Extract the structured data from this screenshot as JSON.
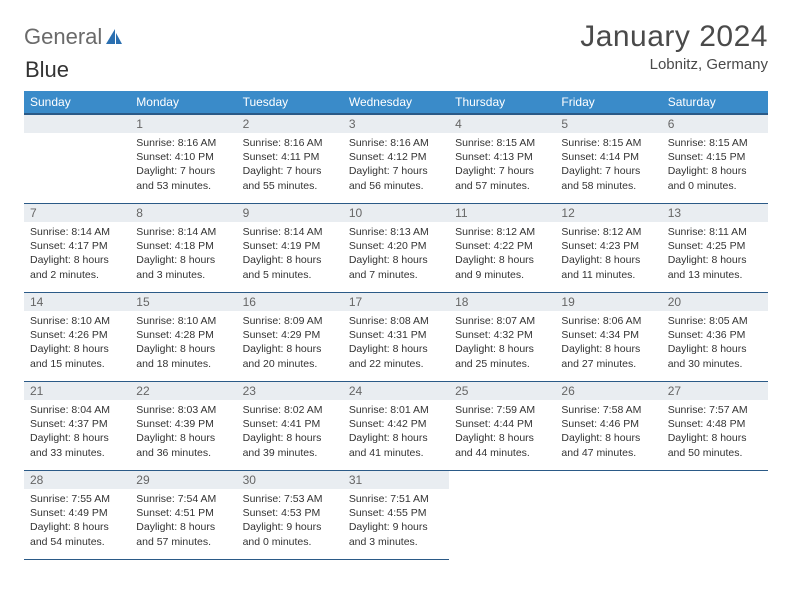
{
  "logo": {
    "text1": "General",
    "text2": "Blue",
    "text1_color": "#6a6a6a",
    "text2_color": "#2b6fb0",
    "sail_color": "#2b6fb0"
  },
  "title": "January 2024",
  "location": "Lobnitz, Germany",
  "colors": {
    "header_bg": "#3a8bc9",
    "header_border": "#2b5a87",
    "daynum_bg": "#e9edf1",
    "text": "#333333"
  },
  "typography": {
    "title_fontsize": 30,
    "location_fontsize": 15,
    "header_fontsize": 12,
    "daynum_fontsize": 12,
    "body_fontsize": 10.5
  },
  "days": [
    "Sunday",
    "Monday",
    "Tuesday",
    "Wednesday",
    "Thursday",
    "Friday",
    "Saturday"
  ],
  "first_weekday": 1,
  "num_days": 31,
  "cells": {
    "1": {
      "sr": "8:16 AM",
      "ss": "4:10 PM",
      "dl": "7 hours and 53 minutes."
    },
    "2": {
      "sr": "8:16 AM",
      "ss": "4:11 PM",
      "dl": "7 hours and 55 minutes."
    },
    "3": {
      "sr": "8:16 AM",
      "ss": "4:12 PM",
      "dl": "7 hours and 56 minutes."
    },
    "4": {
      "sr": "8:15 AM",
      "ss": "4:13 PM",
      "dl": "7 hours and 57 minutes."
    },
    "5": {
      "sr": "8:15 AM",
      "ss": "4:14 PM",
      "dl": "7 hours and 58 minutes."
    },
    "6": {
      "sr": "8:15 AM",
      "ss": "4:15 PM",
      "dl": "8 hours and 0 minutes."
    },
    "7": {
      "sr": "8:14 AM",
      "ss": "4:17 PM",
      "dl": "8 hours and 2 minutes."
    },
    "8": {
      "sr": "8:14 AM",
      "ss": "4:18 PM",
      "dl": "8 hours and 3 minutes."
    },
    "9": {
      "sr": "8:14 AM",
      "ss": "4:19 PM",
      "dl": "8 hours and 5 minutes."
    },
    "10": {
      "sr": "8:13 AM",
      "ss": "4:20 PM",
      "dl": "8 hours and 7 minutes."
    },
    "11": {
      "sr": "8:12 AM",
      "ss": "4:22 PM",
      "dl": "8 hours and 9 minutes."
    },
    "12": {
      "sr": "8:12 AM",
      "ss": "4:23 PM",
      "dl": "8 hours and 11 minutes."
    },
    "13": {
      "sr": "8:11 AM",
      "ss": "4:25 PM",
      "dl": "8 hours and 13 minutes."
    },
    "14": {
      "sr": "8:10 AM",
      "ss": "4:26 PM",
      "dl": "8 hours and 15 minutes."
    },
    "15": {
      "sr": "8:10 AM",
      "ss": "4:28 PM",
      "dl": "8 hours and 18 minutes."
    },
    "16": {
      "sr": "8:09 AM",
      "ss": "4:29 PM",
      "dl": "8 hours and 20 minutes."
    },
    "17": {
      "sr": "8:08 AM",
      "ss": "4:31 PM",
      "dl": "8 hours and 22 minutes."
    },
    "18": {
      "sr": "8:07 AM",
      "ss": "4:32 PM",
      "dl": "8 hours and 25 minutes."
    },
    "19": {
      "sr": "8:06 AM",
      "ss": "4:34 PM",
      "dl": "8 hours and 27 minutes."
    },
    "20": {
      "sr": "8:05 AM",
      "ss": "4:36 PM",
      "dl": "8 hours and 30 minutes."
    },
    "21": {
      "sr": "8:04 AM",
      "ss": "4:37 PM",
      "dl": "8 hours and 33 minutes."
    },
    "22": {
      "sr": "8:03 AM",
      "ss": "4:39 PM",
      "dl": "8 hours and 36 minutes."
    },
    "23": {
      "sr": "8:02 AM",
      "ss": "4:41 PM",
      "dl": "8 hours and 39 minutes."
    },
    "24": {
      "sr": "8:01 AM",
      "ss": "4:42 PM",
      "dl": "8 hours and 41 minutes."
    },
    "25": {
      "sr": "7:59 AM",
      "ss": "4:44 PM",
      "dl": "8 hours and 44 minutes."
    },
    "26": {
      "sr": "7:58 AM",
      "ss": "4:46 PM",
      "dl": "8 hours and 47 minutes."
    },
    "27": {
      "sr": "7:57 AM",
      "ss": "4:48 PM",
      "dl": "8 hours and 50 minutes."
    },
    "28": {
      "sr": "7:55 AM",
      "ss": "4:49 PM",
      "dl": "8 hours and 54 minutes."
    },
    "29": {
      "sr": "7:54 AM",
      "ss": "4:51 PM",
      "dl": "8 hours and 57 minutes."
    },
    "30": {
      "sr": "7:53 AM",
      "ss": "4:53 PM",
      "dl": "9 hours and 0 minutes."
    },
    "31": {
      "sr": "7:51 AM",
      "ss": "4:55 PM",
      "dl": "9 hours and 3 minutes."
    }
  },
  "labels": {
    "sunrise": "Sunrise: ",
    "sunset": "Sunset: ",
    "daylight": "Daylight: "
  }
}
